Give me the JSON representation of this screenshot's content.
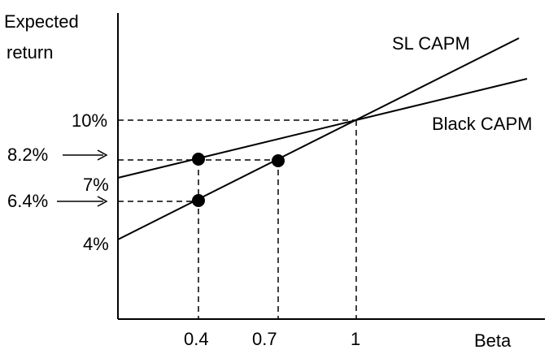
{
  "figure": {
    "y_axis_label_line1": "Expected",
    "y_axis_label_line2": "return",
    "x_axis_label": "Beta",
    "sl_capm_label": "SL CAPM",
    "black_capm_label": "Black CAPM",
    "y_ticks": {
      "ten": "10%",
      "eight_two": "8.2%",
      "seven": "7%",
      "six_four": "6.4%",
      "four": "4%"
    },
    "x_ticks": {
      "zero_four": "0.4",
      "zero_seven": "0.7",
      "one": "1"
    }
  },
  "chart_data": {
    "type": "line",
    "xlabel": "Beta",
    "ylabel": "Expected return",
    "series": [
      {
        "name": "SL CAPM",
        "intercept": 4,
        "slope": 6,
        "x": [
          0,
          1
        ],
        "y": [
          4,
          10
        ]
      },
      {
        "name": "Black CAPM",
        "intercept": 7,
        "slope": 3,
        "x": [
          0,
          1
        ],
        "y": [
          7,
          10
        ]
      }
    ],
    "marked_points": [
      {
        "x": 0.4,
        "y": 8.2
      },
      {
        "x": 0.7,
        "y": 8.2
      },
      {
        "x": 0.4,
        "y": 6.4
      }
    ],
    "intersection": {
      "x": 1,
      "y": 10
    },
    "grid": false
  }
}
